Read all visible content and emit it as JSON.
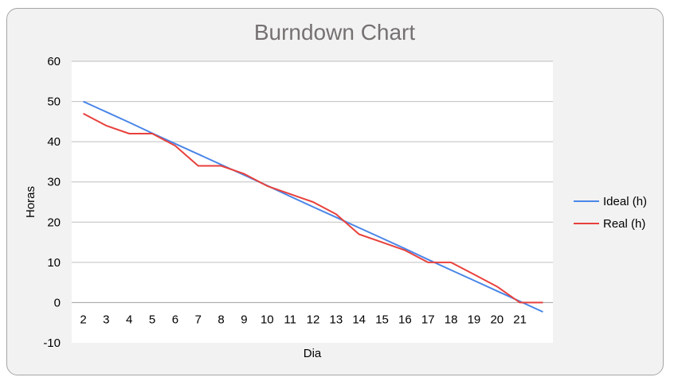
{
  "chart_data": {
    "type": "line",
    "title": "Burndown Chart",
    "xlabel": "Dia",
    "ylabel": "Horas",
    "categories": [
      "2",
      "3",
      "4",
      "5",
      "6",
      "7",
      "8",
      "9",
      "10",
      "11",
      "12",
      "13",
      "14",
      "15",
      "16",
      "17",
      "18",
      "19",
      "20",
      "21",
      ""
    ],
    "ylim": [
      -10,
      60
    ],
    "yticks": [
      -10,
      0,
      10,
      20,
      30,
      40,
      50,
      60
    ],
    "grid": true,
    "legend_position": "right",
    "series": [
      {
        "name": "Ideal (h)",
        "color": "#4a86e8",
        "values": [
          50,
          47.4,
          44.8,
          42.1,
          39.5,
          36.9,
          34.3,
          31.7,
          29.1,
          26.4,
          23.8,
          21.2,
          18.6,
          16.0,
          13.4,
          10.7,
          8.1,
          5.5,
          2.9,
          0.3,
          -2.3
        ]
      },
      {
        "name": "Real (h)",
        "color": "#e8413c",
        "values": [
          47,
          44,
          42,
          42,
          39,
          34,
          34,
          32,
          29,
          27,
          25,
          22,
          17,
          15,
          13,
          10,
          10,
          7,
          4,
          0,
          0
        ]
      }
    ]
  }
}
